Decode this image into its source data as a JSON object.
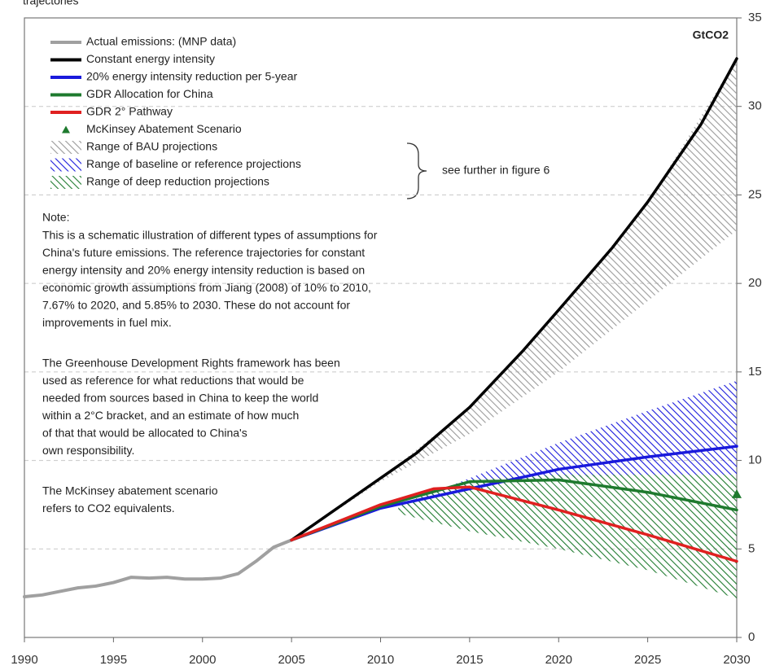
{
  "chart_data": {
    "type": "line",
    "title": "trajectories",
    "unit_label": "GtCO2",
    "xlim": [
      1990,
      2030
    ],
    "xticks": [
      1990,
      1995,
      2000,
      2005,
      2010,
      2015,
      2020,
      2025,
      2030
    ],
    "ylim": [
      0,
      35
    ],
    "yticks": [
      0,
      5,
      10,
      15,
      20,
      25,
      30,
      35
    ],
    "grid": true,
    "series": [
      {
        "name": "Actual emissions: (MNP data)",
        "color": "#a0a0a0",
        "x": [
          1990,
          1991,
          1992,
          1993,
          1994,
          1995,
          1996,
          1997,
          1998,
          1999,
          2000,
          2001,
          2002,
          2003,
          2004,
          2005
        ],
        "values": [
          2.3,
          2.4,
          2.6,
          2.8,
          2.9,
          3.1,
          3.4,
          3.35,
          3.4,
          3.3,
          3.3,
          3.35,
          3.6,
          4.3,
          5.1,
          5.5
        ]
      },
      {
        "name": "Constant energy intensity",
        "color": "#000000",
        "x": [
          2005,
          2007,
          2010,
          2012,
          2015,
          2018,
          2020,
          2023,
          2025,
          2028,
          2030
        ],
        "values": [
          5.5,
          6.9,
          9.0,
          10.4,
          13.0,
          16.2,
          18.5,
          22.0,
          24.6,
          29.0,
          32.7
        ]
      },
      {
        "name": "20% energy intensity reduction per 5-year",
        "color": "#1a1adc",
        "x": [
          2005,
          2010,
          2015,
          2020,
          2025,
          2030
        ],
        "values": [
          5.5,
          7.3,
          8.4,
          9.5,
          10.2,
          10.8
        ]
      },
      {
        "name": "GDR Allocation for China",
        "color": "#1e7a2e",
        "x": [
          2005,
          2010,
          2015,
          2020,
          2025,
          2030
        ],
        "values": [
          5.5,
          7.4,
          8.8,
          8.9,
          8.2,
          7.2
        ]
      },
      {
        "name": "GDR 2° Pathway",
        "color": "#e02020",
        "x": [
          2005,
          2010,
          2013,
          2015,
          2020,
          2025,
          2030
        ],
        "values": [
          5.5,
          7.5,
          8.4,
          8.5,
          7.2,
          5.8,
          4.3
        ]
      },
      {
        "name": "McKinsey Abatement Scenario",
        "color": "#1e7a2e",
        "marker": "triangle",
        "x": [
          2030
        ],
        "values": [
          8.1
        ]
      }
    ],
    "ranges": [
      {
        "name": "Range of BAU projections",
        "color": "#9a9a9a",
        "x": [
          2005,
          2010,
          2015,
          2020,
          2025,
          2030
        ],
        "low": [
          5.5,
          8.8,
          11.5,
          15.0,
          19.0,
          23.0
        ],
        "high": [
          5.5,
          9.0,
          13.0,
          18.5,
          24.6,
          32.7
        ]
      },
      {
        "name": "Range of baseline or reference projections",
        "color": "#1a1adc",
        "x": [
          2011,
          2015,
          2020,
          2025,
          2030
        ],
        "low": [
          7.2,
          8.5,
          9.0,
          9.2,
          9.2
        ],
        "high": [
          7.4,
          9.0,
          11.0,
          12.8,
          14.5
        ]
      },
      {
        "name": "Range of deep reduction projections",
        "color": "#1e7a2e",
        "x": [
          2011,
          2015,
          2020,
          2025,
          2030
        ],
        "low": [
          7.0,
          6.0,
          5.0,
          3.8,
          2.2
        ],
        "high": [
          7.5,
          8.9,
          9.2,
          9.2,
          9.2
        ]
      }
    ],
    "brace_note": "see further in figure 6",
    "note": {
      "heading": "Note:",
      "paragraphs": [
        [
          "This is a schematic illustration of different types of assumptions for",
          "China's future emissions. The reference trajectories for constant",
          "energy intensity and 20% energy intensity reduction is based on",
          "economic growth assumptions from Jiang (2008) of 10% to 2010,",
          "7.67% to 2020, and 5.85% to 2030. These do not account for",
          "improvements in fuel mix."
        ],
        [
          "The Greenhouse Development Rights framework has been",
          "used as reference for what reductions that would be",
          "needed from sources based in China to keep the world",
          "within a 2°C bracket, and an estimate of how much",
          "of that that would be allocated to China's",
          "own responsibility."
        ],
        [
          "The McKinsey abatement scenario",
          "refers to CO2 equivalents."
        ]
      ]
    }
  }
}
